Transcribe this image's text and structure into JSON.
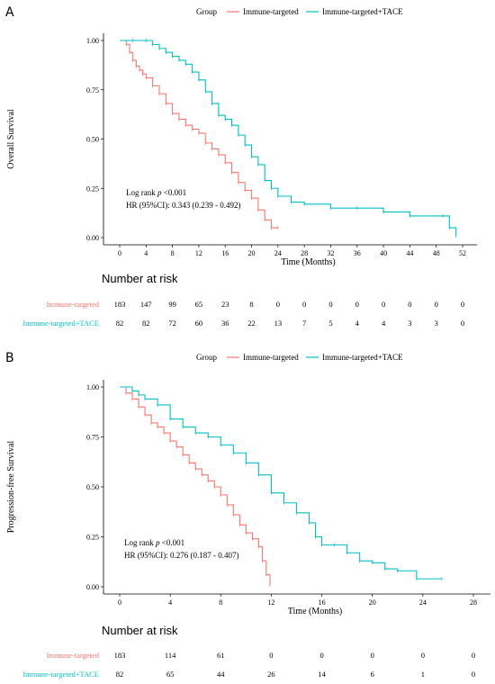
{
  "colors": {
    "immune": "#f8766d",
    "tace": "#00bfc4"
  },
  "chart_data": [
    {
      "type": "line",
      "panel_label": "A",
      "legend": {
        "title": "Group",
        "position": "top",
        "entries": [
          "Immune-targeted",
          "Immune-targeted+TACE"
        ]
      },
      "xlabel": "Time (Months)",
      "ylabel": "Overall Survival",
      "xlim": [
        0,
        52
      ],
      "ylim": [
        0,
        1
      ],
      "x_ticks": [
        "0",
        "4",
        "8",
        "12",
        "16",
        "20",
        "24",
        "28",
        "32",
        "36",
        "40",
        "44",
        "48",
        "52"
      ],
      "y_ticks": [
        "0.00",
        "0.25",
        "0.50",
        "0.75",
        "1.00"
      ],
      "annotations": {
        "logrank_prefix": "Log rank ",
        "p_symbol": "p",
        "logrank_value": " <0.001",
        "hr": "HR (95%CI): 0.343 (0.239 - 0.492)"
      },
      "series": [
        {
          "name": "Immune-targeted",
          "x": [
            0,
            1,
            1.5,
            2,
            2.5,
            3,
            3.5,
            4,
            5,
            6,
            7,
            8,
            9,
            10,
            11,
            12,
            13,
            14,
            15,
            16,
            17,
            18,
            19,
            20,
            21,
            22,
            23,
            24
          ],
          "y": [
            1.0,
            0.98,
            0.94,
            0.9,
            0.87,
            0.85,
            0.83,
            0.81,
            0.77,
            0.73,
            0.68,
            0.63,
            0.6,
            0.57,
            0.55,
            0.53,
            0.48,
            0.45,
            0.42,
            0.38,
            0.33,
            0.28,
            0.24,
            0.2,
            0.14,
            0.09,
            0.05,
            0.05
          ]
        },
        {
          "name": "Immune-targeted+TACE",
          "x": [
            0,
            2,
            4,
            5,
            6,
            7,
            8,
            9,
            10,
            11,
            12,
            13,
            14,
            15,
            16,
            17,
            18,
            19,
            20,
            21,
            22,
            23,
            24,
            26,
            28,
            32,
            36,
            40,
            44,
            49,
            50,
            51
          ],
          "y": [
            1.0,
            1.0,
            1.0,
            0.98,
            0.96,
            0.94,
            0.92,
            0.9,
            0.88,
            0.84,
            0.8,
            0.74,
            0.68,
            0.62,
            0.6,
            0.57,
            0.52,
            0.47,
            0.41,
            0.37,
            0.29,
            0.25,
            0.21,
            0.18,
            0.17,
            0.15,
            0.15,
            0.13,
            0.11,
            0.11,
            0.05,
            0.01
          ]
        }
      ],
      "risk_table": {
        "title": "Number at risk",
        "rows": [
          {
            "label": "Immune-targeted",
            "values": [
              "183",
              "147",
              "99",
              "65",
              "23",
              "8",
              "0",
              "0",
              "0",
              "0",
              "0",
              "0",
              "0",
              "0"
            ]
          },
          {
            "label": "Immune-targeted+TACE",
            "values": [
              "82",
              "82",
              "72",
              "60",
              "36",
              "22",
              "13",
              "7",
              "5",
              "4",
              "4",
              "3",
              "3",
              "0"
            ]
          }
        ]
      }
    },
    {
      "type": "line",
      "panel_label": "B",
      "legend": {
        "title": "Group",
        "position": "top",
        "entries": [
          "Immune-targeted",
          "Immune-targeted+TACE"
        ]
      },
      "xlabel": "Time (Months)",
      "ylabel": "Progression-free Survival",
      "xlim": [
        0,
        28
      ],
      "ylim": [
        0,
        1
      ],
      "x_ticks": [
        "0",
        "4",
        "8",
        "12",
        "16",
        "20",
        "24",
        "28"
      ],
      "y_ticks": [
        "0.00",
        "0.25",
        "0.50",
        "0.75",
        "1.00"
      ],
      "annotations": {
        "logrank_prefix": "Log rank ",
        "p_symbol": "p",
        "logrank_value": " <0.001",
        "hr": "HR (95%CI): 0.276 (0.187 - 0.407)"
      },
      "series": [
        {
          "name": "Immune-targeted",
          "x": [
            0,
            0.5,
            1,
            1.5,
            2,
            2.5,
            3,
            3.5,
            4,
            4.5,
            5,
            5.5,
            6,
            6.5,
            7,
            7.5,
            8,
            8.5,
            9,
            9.5,
            10,
            10.5,
            11,
            11.3,
            11.6,
            11.9
          ],
          "y": [
            1.0,
            0.97,
            0.94,
            0.9,
            0.86,
            0.82,
            0.8,
            0.77,
            0.73,
            0.7,
            0.66,
            0.62,
            0.59,
            0.56,
            0.53,
            0.5,
            0.46,
            0.41,
            0.36,
            0.31,
            0.27,
            0.24,
            0.2,
            0.13,
            0.06,
            0.01
          ]
        },
        {
          "name": "Immune-targeted+TACE",
          "x": [
            0,
            1,
            1.5,
            2,
            3,
            4,
            5,
            6,
            7,
            8,
            9,
            10,
            11,
            12,
            13,
            14,
            15,
            15.5,
            16,
            17,
            18,
            19,
            20,
            21,
            22,
            23.5,
            25.5
          ],
          "y": [
            1.0,
            0.98,
            0.96,
            0.94,
            0.91,
            0.84,
            0.8,
            0.77,
            0.75,
            0.71,
            0.67,
            0.62,
            0.56,
            0.47,
            0.42,
            0.37,
            0.32,
            0.25,
            0.21,
            0.21,
            0.17,
            0.13,
            0.12,
            0.09,
            0.08,
            0.04,
            0.04
          ]
        }
      ],
      "risk_table": {
        "title": "Number at risk",
        "rows": [
          {
            "label": "Immune-targeted",
            "values": [
              "183",
              "114",
              "61",
              "0",
              "0",
              "0",
              "0",
              "0"
            ]
          },
          {
            "label": "Immune-targeted+TACE",
            "values": [
              "82",
              "65",
              "44",
              "26",
              "14",
              "6",
              "1",
              "0"
            ]
          }
        ]
      }
    }
  ]
}
